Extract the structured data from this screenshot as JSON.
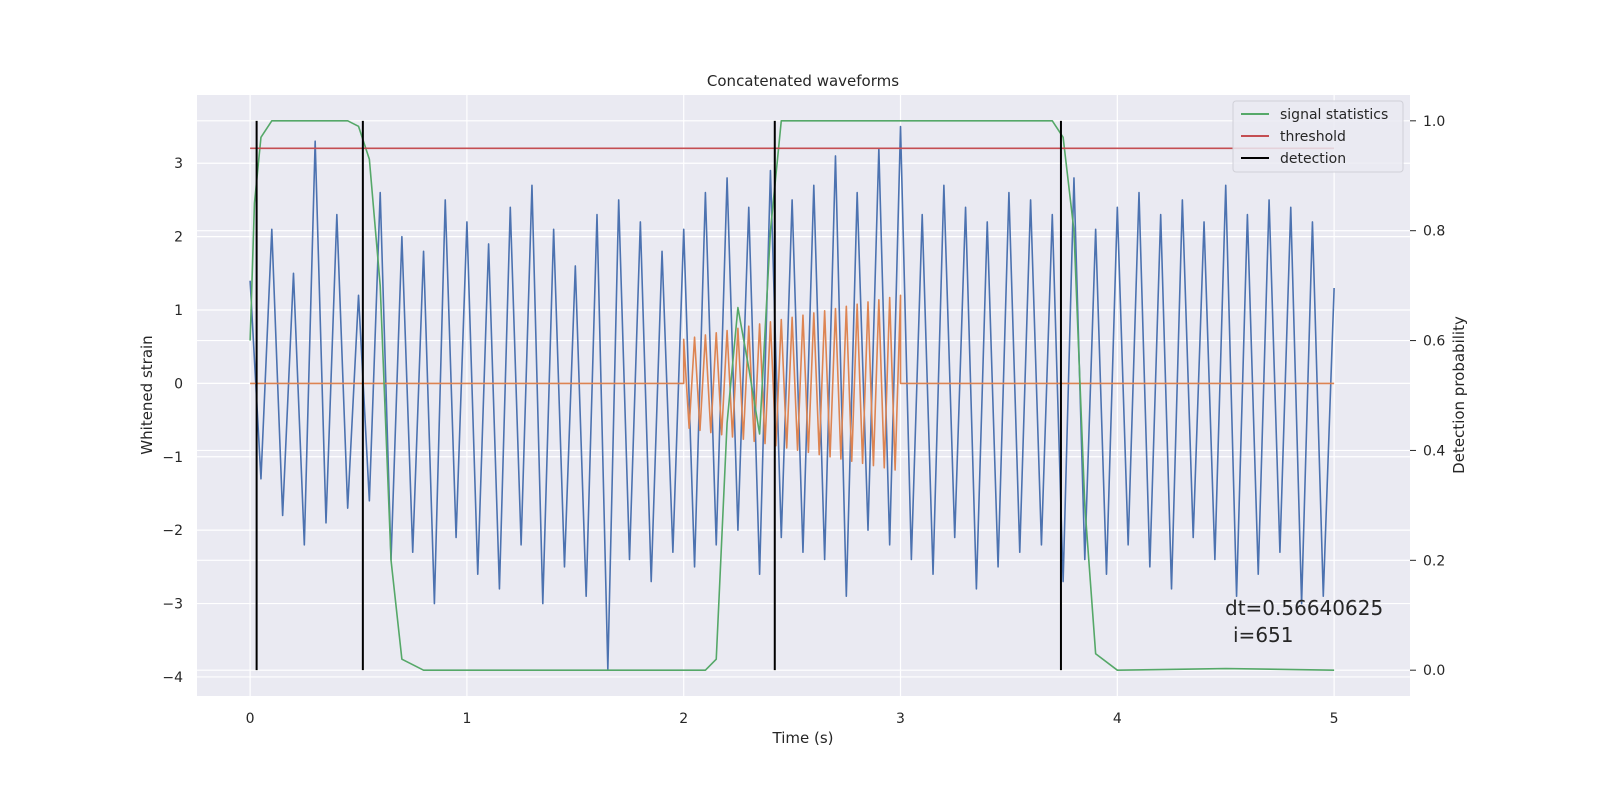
{
  "chart_data": {
    "type": "line",
    "title": "Concatenated waveforms",
    "xlabel": "Time (s)",
    "ylabel": "Whitened strain",
    "y2label": "Detection probability",
    "xlim": [
      -0.245,
      5.35
    ],
    "ylim": [
      -4.26,
      3.93
    ],
    "y2lim": [
      -0.047,
      1.047
    ],
    "xticks": [
      0,
      1,
      2,
      3,
      4,
      5
    ],
    "yticks": [
      {
        "value": -4,
        "label": "−4"
      },
      {
        "value": -3,
        "label": "−3"
      },
      {
        "value": -2,
        "label": "−2"
      },
      {
        "value": -1,
        "label": "−1"
      },
      0,
      1,
      2,
      3
    ],
    "y2ticks": [
      {
        "value": 0,
        "label": "0.0"
      },
      0.2,
      0.4,
      0.6,
      0.8,
      {
        "value": 1,
        "label": "1.0"
      }
    ],
    "grid": true,
    "legend_loc": "upper right",
    "annotation": [
      "dt=0.56640625",
      "i=651"
    ],
    "series": [
      {
        "color": "#4c72b0",
        "x": [
          0,
          0.05,
          0.1,
          0.15,
          0.2,
          0.25,
          0.3,
          0.35,
          0.4,
          0.45,
          0.5,
          0.55,
          0.6,
          0.65,
          0.7,
          0.75,
          0.8,
          0.85,
          0.9,
          0.95,
          1,
          1.05,
          1.1,
          1.15,
          1.2,
          1.25,
          1.3,
          1.35,
          1.4,
          1.45,
          1.5,
          1.55,
          1.6,
          1.65,
          1.7,
          1.75,
          1.8,
          1.85,
          1.9,
          1.95,
          2,
          2.05,
          2.1,
          2.15,
          2.2,
          2.25,
          2.3,
          2.35,
          2.4,
          2.45,
          2.5,
          2.55,
          2.6,
          2.65,
          2.7,
          2.75,
          2.8,
          2.85,
          2.9,
          2.95,
          3,
          3.05,
          3.1,
          3.15,
          3.2,
          3.25,
          3.3,
          3.35,
          3.4,
          3.45,
          3.5,
          3.55,
          3.6,
          3.65,
          3.7,
          3.75,
          3.8,
          3.85,
          3.9,
          3.95,
          4,
          4.05,
          4.1,
          4.15,
          4.2,
          4.25,
          4.3,
          4.35,
          4.4,
          4.45,
          4.5,
          4.55,
          4.6,
          4.65,
          4.7,
          4.75,
          4.8,
          4.85,
          4.9,
          4.95,
          5
        ],
        "values": [
          1.4,
          -1.3,
          2.1,
          -1.8,
          1.5,
          -2.2,
          3.3,
          -1.9,
          2.3,
          -1.7,
          1.2,
          -1.6,
          2.6,
          -2.4,
          2.0,
          -2.3,
          1.8,
          -3.0,
          2.5,
          -2.1,
          2.2,
          -2.6,
          1.9,
          -2.8,
          2.4,
          -2.2,
          2.7,
          -3.0,
          2.1,
          -2.5,
          1.6,
          -2.9,
          2.3,
          -3.9,
          2.5,
          -2.4,
          2.2,
          -2.7,
          1.8,
          -2.3,
          2.1,
          -2.5,
          2.6,
          -2.2,
          2.8,
          -2.0,
          2.4,
          -2.6,
          2.9,
          -2.1,
          2.5,
          -2.3,
          2.7,
          -2.4,
          3.1,
          -2.9,
          2.6,
          -2.0,
          3.2,
          -2.2,
          3.5,
          -2.4,
          2.3,
          -2.6,
          2.7,
          -2.1,
          2.4,
          -2.8,
          2.2,
          -2.5,
          2.6,
          -2.3,
          2.5,
          -2.2,
          2.3,
          -2.7,
          2.8,
          -2.4,
          2.1,
          -2.6,
          2.4,
          -2.2,
          2.6,
          -2.5,
          2.3,
          -2.8,
          2.5,
          -2.1,
          2.2,
          -2.4,
          2.7,
          -2.9,
          2.3,
          -2.6,
          2.5,
          -2.3,
          2.4,
          -3.0,
          2.2,
          -2.9,
          1.3
        ]
      },
      {
        "color": "#dd8452",
        "x": [
          0,
          2,
          2,
          2.025,
          2.05,
          2.075,
          2.1,
          2.125,
          2.15,
          2.175,
          2.2,
          2.225,
          2.25,
          2.275,
          2.3,
          2.325,
          2.35,
          2.375,
          2.4,
          2.425,
          2.45,
          2.475,
          2.5,
          2.525,
          2.55,
          2.575,
          2.6,
          2.625,
          2.65,
          2.675,
          2.7,
          2.725,
          2.75,
          2.775,
          2.8,
          2.825,
          2.85,
          2.875,
          2.9,
          2.925,
          2.95,
          2.975,
          3,
          3,
          5
        ],
        "values": [
          0,
          0,
          0.6,
          -0.61,
          0.63,
          -0.64,
          0.66,
          -0.67,
          0.69,
          -0.7,
          0.72,
          -0.73,
          0.75,
          -0.76,
          0.78,
          -0.79,
          0.81,
          -0.82,
          0.84,
          -0.85,
          0.87,
          -0.88,
          0.9,
          -0.91,
          0.93,
          -0.94,
          0.96,
          -0.97,
          0.99,
          -1.0,
          1.02,
          -1.03,
          1.05,
          -1.06,
          1.08,
          -1.09,
          1.11,
          -1.12,
          1.14,
          -1.15,
          1.17,
          -1.18,
          1.2,
          0,
          0
        ]
      },
      {
        "name": "signal statistics",
        "color": "#55a868",
        "axis": "y2",
        "x": [
          0,
          0.02,
          0.05,
          0.1,
          0.15,
          0.3,
          0.45,
          0.5,
          0.55,
          0.6,
          0.65,
          0.7,
          0.8,
          1.5,
          2.1,
          2.15,
          2.2,
          2.25,
          2.3,
          2.35,
          2.4,
          2.45,
          2.5,
          3.5,
          3.7,
          3.75,
          3.8,
          3.85,
          3.9,
          4.0,
          4.5,
          5.0
        ],
        "values": [
          0.6,
          0.85,
          0.97,
          1.0,
          1.0,
          1.0,
          1.0,
          0.99,
          0.93,
          0.7,
          0.2,
          0.02,
          0.0,
          0.0,
          0.0,
          0.02,
          0.45,
          0.66,
          0.55,
          0.43,
          0.8,
          1.0,
          1.0,
          1.0,
          1.0,
          0.97,
          0.8,
          0.3,
          0.03,
          0.0,
          0.003,
          0.0
        ]
      },
      {
        "name": "threshold",
        "color": "#c44e52",
        "axis": "y2",
        "x": [
          0,
          5
        ],
        "values": [
          0.95,
          0.95
        ]
      },
      {
        "name": "detection",
        "color": "#000000",
        "axis": "y2",
        "x": [
          0.03,
          0.52,
          2.42,
          3.74
        ],
        "y2_span": [
          0,
          1
        ]
      }
    ]
  }
}
